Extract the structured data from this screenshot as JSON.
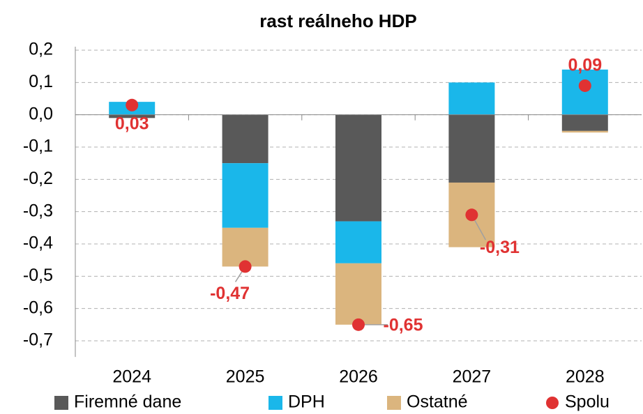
{
  "chart_data": {
    "type": "bar",
    "stacked": true,
    "title": "rast reálneho HDP",
    "categories": [
      "2024",
      "2025",
      "2026",
      "2027",
      "2028"
    ],
    "series": [
      {
        "name": "Firemné dane",
        "color": "#595959",
        "values": [
          -0.01,
          -0.15,
          -0.33,
          -0.21,
          -0.05
        ]
      },
      {
        "name": "DPH",
        "color": "#1ab7ea",
        "values": [
          0.04,
          -0.2,
          -0.13,
          0.1,
          0.14
        ]
      },
      {
        "name": "Ostatné",
        "color": "#dbb57e",
        "values": [
          0,
          -0.12,
          -0.19,
          -0.2,
          -0.005
        ]
      },
      {
        "name": "Spolu",
        "type": "scatter",
        "color": "#e03232",
        "values": [
          0.03,
          -0.47,
          -0.65,
          -0.31,
          0.09
        ],
        "value_labels": [
          "0,03",
          "-0,47",
          "-0,65",
          "-0,31",
          "0,09"
        ]
      }
    ],
    "ylim": [
      -0.75,
      0.2
    ],
    "yticks": [
      {
        "value": 0.2,
        "label": "0,2"
      },
      {
        "value": 0.1,
        "label": "0,1"
      },
      {
        "value": 0,
        "label": "0,0"
      },
      {
        "value": -0.1,
        "label": "-0,1"
      },
      {
        "value": -0.2,
        "label": "-0,2"
      },
      {
        "value": -0.3,
        "label": "-0,3"
      },
      {
        "value": -0.4,
        "label": "-0,4"
      },
      {
        "value": -0.5,
        "label": "-0,5"
      },
      {
        "value": -0.6,
        "label": "-0,6"
      },
      {
        "value": -0.7,
        "label": "-0,7"
      }
    ],
    "grid": true,
    "legend": "bottom"
  }
}
